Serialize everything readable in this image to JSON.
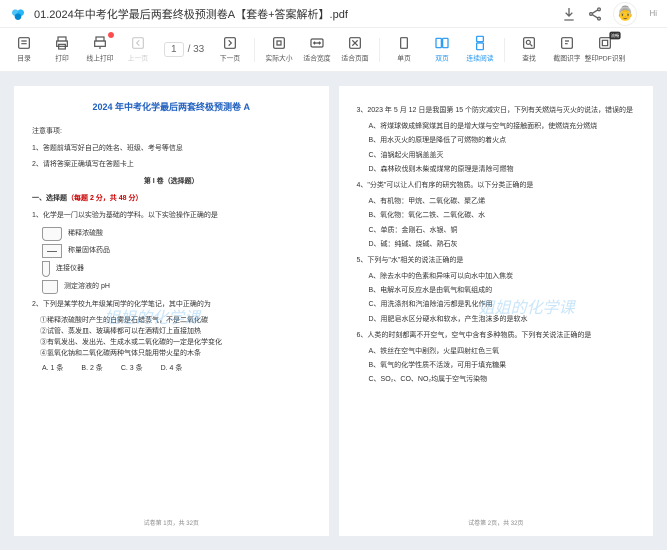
{
  "header": {
    "title": "01.2024年中考化学最后两套终极预测卷A【套卷+答案解析】.pdf",
    "hi": "Hi"
  },
  "pager": {
    "current": "1",
    "total": "33"
  },
  "tools": [
    {
      "name": "catalog",
      "label": "目录",
      "interact": true
    },
    {
      "name": "print",
      "label": "打印",
      "interact": true
    },
    {
      "name": "online-print",
      "label": "线上打印",
      "interact": true,
      "badge": true
    },
    {
      "name": "prev",
      "label": "上一页",
      "interact": false,
      "disabled": true
    },
    {
      "name": "PAGER"
    },
    {
      "name": "next",
      "label": "下一页",
      "interact": true
    },
    {
      "name": "SEP"
    },
    {
      "name": "actual",
      "label": "实际大小",
      "interact": true
    },
    {
      "name": "fit-width",
      "label": "适合宽度",
      "interact": true
    },
    {
      "name": "fit-page",
      "label": "适合页面",
      "interact": true
    },
    {
      "name": "SEP"
    },
    {
      "name": "single",
      "label": "单页",
      "interact": true
    },
    {
      "name": "double",
      "label": "双页",
      "interact": true,
      "active": true
    },
    {
      "name": "continuous",
      "label": "连续阅读",
      "interact": true,
      "active": true
    },
    {
      "name": "SEP"
    },
    {
      "name": "find",
      "label": "查找",
      "interact": true
    },
    {
      "name": "ocr",
      "label": "截图识字",
      "interact": true
    },
    {
      "name": "pdf-ocr",
      "label": "整印PDF识别",
      "interact": true,
      "smart": "流畅"
    }
  ],
  "doc": {
    "mainTitle": "2024 年中考化学最后两套终极预测卷 A",
    "notice": "注意事项:",
    "n1": "1、答题前填写好自己的姓名、班级、考号等信息",
    "n2": "2、请将答案正确填写在答题卡上",
    "part1": "第 I 卷（选择题）",
    "sec1": "一、选择题",
    "sec1s": "（每题 2 分，共 48 分）",
    "q1": "1、化学是一门以实验为基础的学科。以下实验操作正确的是",
    "q1a": "稀释浓硫酸",
    "q1b": "称量固体药品",
    "q1c": "连接仪器",
    "q1d": "测定溶液的 pH",
    "q2": "2、下列是某学校九年级某同学的化学笔记，其中正确的为",
    "q2a": "①稀释浓硫酸时产生的白雾是石蜡蒸气，不是二氧化碳",
    "q2b": "②试管、蒸发皿、玻璃棒都可以在酒精灯上直接加热",
    "q2c": "③有氧发出、发出光、生成水或二氧化碳的一定是化学变化",
    "q2d": "④氢氧化钠和二氧化碳两种气体只能用带火星的木条",
    "q2A": "A. 1 条",
    "q2B": "B. 2 条",
    "q2C": "C. 3 条",
    "q2D": "D. 4 条",
    "f1": "试卷第 1页，共 32页",
    "q3": "3、2023 年 5 月 12 日是我国第 15 个防灾减灾日，下列有关燃烧与灭火的说法，错误的是",
    "q3a": "A、将煤球做成蜂窝煤其目的是增大煤与空气的接触面积，使燃烧充分燃烧",
    "q3b": "B、用水灭火的原理是降低了可燃物的着火点",
    "q3c": "C、油锅起火用锅盖盖灭",
    "q3d": "D、森林砍伐则木柴或煤常的原理是清除可燃物",
    "q4": "4、\"分类\"可以让人们有序的研究物质。以下分类正确的是",
    "q4a": "A、有机物：甲烷、二氧化碳、聚乙烯",
    "q4b": "B、氧化物：氧化二铁、二氧化碳、水",
    "q4c": "C、单质：金刚石、水银、铜",
    "q4d": "D、碱：纯碱、烧碱、熟石灰",
    "q5": "5、下列与\"水\"相关的说法正确的是",
    "q5a": "A、除去水中的色素和异味可以向水中加入焦炭",
    "q5b": "B、电解水可反应水是由氧气和氧组成的",
    "q5c": "C、用洗涤剂和汽油除油污都是乳化作用",
    "q5d": "D、用肥皂水区分硬水和软水，产生泡沫多的是软水",
    "q6": "6、人类的时刻都离不开空气，空气中含有多种物质。下列有关说法正确的是",
    "q6a": "A、铁丝在空气中剧烈，火星四射红色三氧",
    "q6b": "B、氧气的化学性质不活泼，可用于填充糖果",
    "q6c": "C、SO₂、CO、NO₂均属于空气污染物",
    "f2": "试卷第 2页，共 32页"
  },
  "watermark": "姐姐的化学课"
}
